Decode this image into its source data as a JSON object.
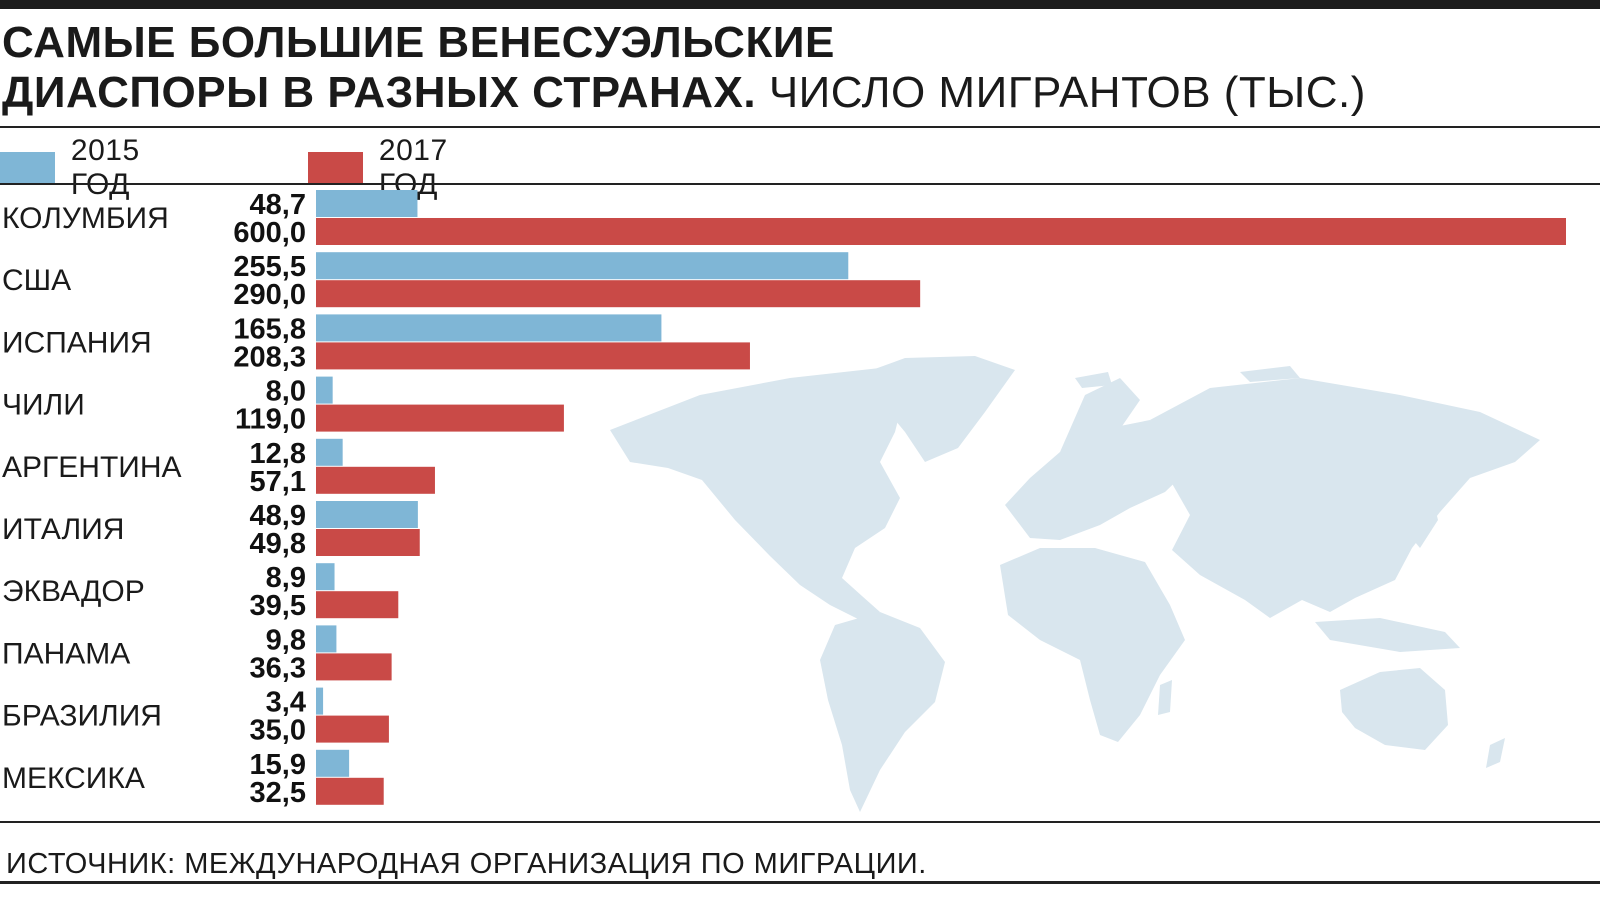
{
  "title": {
    "bold": "САМЫЕ БОЛЬШИЕ ВЕНЕСУЭЛЬСКИЕ ДИАСПОРЫ В РАЗНЫХ СТРАНАХ.",
    "bold_line1": "САМЫЕ БОЛЬШИЕ ВЕНЕСУЭЛЬСКИЕ",
    "bold_line2": "ДИАСПОРЫ В РАЗНЫХ СТРАНАХ.",
    "light": "ЧИСЛО МИГРАНТОВ (ТЫС.)"
  },
  "source": "ИСТОЧНИК: МЕЖДУНАРОДНАЯ ОРГАНИЗАЦИЯ ПО МИГРАЦИИ.",
  "colors": {
    "y2015": "#7fb6d6",
    "y2017": "#c94a47",
    "map": "#d9e6ee",
    "rule": "#222222"
  },
  "chart_data": {
    "type": "bar",
    "orientation": "horizontal",
    "title": "САМЫЕ БОЛЬШИЕ ВЕНЕСУЭЛЬСКИЕ ДИАСПОРЫ В РАЗНЫХ СТРАНАХ. ЧИСЛО МИГРАНТОВ (ТЫС.)",
    "categories": [
      "КОЛУМБИЯ",
      "США",
      "ИСПАНИЯ",
      "ЧИЛИ",
      "АРГЕНТИНА",
      "ИТАЛИЯ",
      "ЭКВАДОР",
      "ПАНАМА",
      "БРАЗИЛИЯ",
      "МЕКСИКА"
    ],
    "series": [
      {
        "name": "2015 ГОД",
        "values": [
          48.7,
          255.5,
          165.8,
          8.0,
          12.8,
          48.9,
          8.9,
          9.8,
          3.4,
          15.9
        ],
        "labels": [
          "48,7",
          "255,5",
          "165,8",
          "8,0",
          "12,8",
          "48,9",
          "8,9",
          "9,8",
          "3,4",
          "15,9"
        ]
      },
      {
        "name": "2017 ГОД",
        "values": [
          600.0,
          290.0,
          208.3,
          119.0,
          57.1,
          49.8,
          39.5,
          36.3,
          35.0,
          32.5
        ],
        "labels": [
          "600,0",
          "290,0",
          "208,3",
          "119,0",
          "57,1",
          "49,8",
          "39,5",
          "36,3",
          "35,0",
          "32,5"
        ]
      }
    ],
    "xlim": [
      0,
      600
    ],
    "grid": false,
    "legend_position": "top-left"
  }
}
